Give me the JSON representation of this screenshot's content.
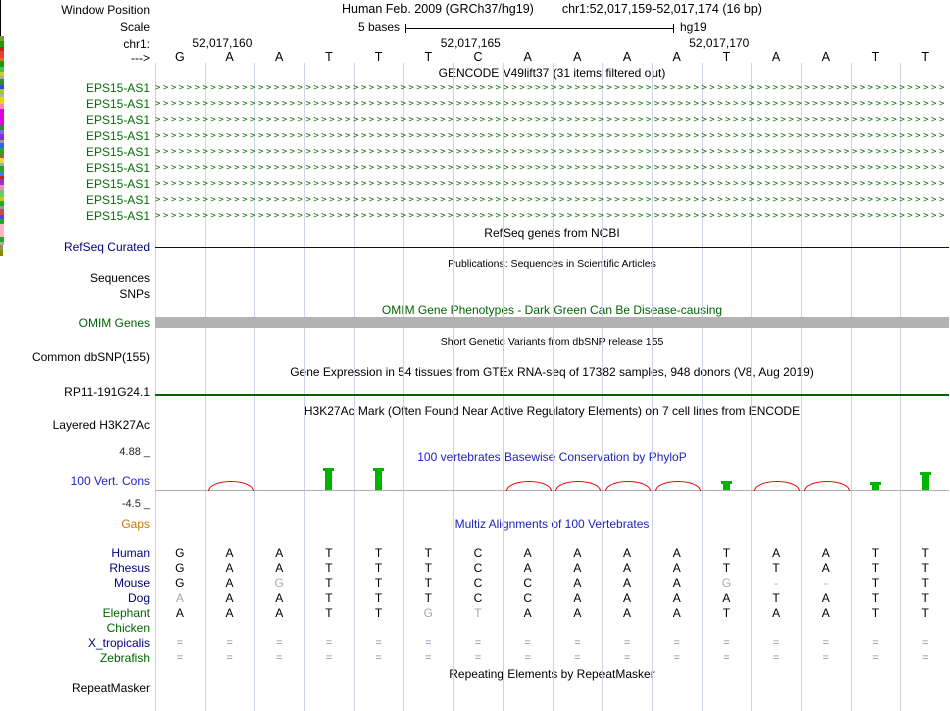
{
  "colors": {
    "green": "#007200",
    "dark-green": "#006400",
    "navy": "#000080",
    "title-blue": "#2222bb",
    "orange": "#c87800",
    "grid": "#ccd2e8",
    "gray-bar": "#b3b3b3",
    "red": "#e10000",
    "cons-green": "#00b400",
    "eq": "#8a8aa8",
    "dim": "#a8a8a8"
  },
  "window": {
    "assembly_title": "Human Feb. 2009 (GRCh37/hg19)",
    "position_title": "chr1:52,017,159-52,017,174 (16 bp)"
  },
  "ruler": {
    "window_position_label": "Window Position",
    "scale_label": "Scale",
    "scale_text": "5 bases",
    "assembly_short": "hg19",
    "chrom_label": "chr1:",
    "strand_arrow": "--->",
    "ticks": [
      {
        "label": "52,017,160",
        "col": 2
      },
      {
        "label": "52,017,165",
        "col": 7
      },
      {
        "label": "52,017,170",
        "col": 12
      }
    ]
  },
  "sequence": [
    "G",
    "A",
    "A",
    "T",
    "T",
    "T",
    "C",
    "A",
    "A",
    "A",
    "A",
    "T",
    "A",
    "A",
    "T",
    "T"
  ],
  "gencode": {
    "title": "GENCODE V49lift37 (31 items filtered out)",
    "gene_label": "EPS15-AS1",
    "rows": 9
  },
  "refseq": {
    "title": "RefSeq genes from NCBI",
    "label": "RefSeq Curated"
  },
  "publications": {
    "title": "Publications: Sequences in Scientific Articles",
    "label_sequences": "Sequences",
    "label_snps": "SNPs"
  },
  "omim": {
    "title": "OMIM Gene Phenotypes - Dark Green Can Be Disease-causing",
    "label": "OMIM Genes"
  },
  "dbsnp": {
    "title": "Short Genetic Variants from dbSNP release 155",
    "label": "Common dbSNP(155)"
  },
  "gtex": {
    "title": "Gene Expression in 54 tissues from GTEx RNA-seq of 17382 samples, 948 donors (V8, Aug 2019)",
    "label": "RP11-191G24.1",
    "bars": [
      {
        "h": 5,
        "c": "#7a9a3a"
      },
      {
        "h": 6,
        "c": "#0f9e0f"
      },
      {
        "h": 4,
        "c": "#cc2200"
      },
      {
        "h": 7,
        "c": "#e04040"
      },
      {
        "h": 3,
        "c": "#ef7000"
      },
      {
        "h": 6,
        "c": "#0f9e0f"
      },
      {
        "h": 5,
        "c": "#55bb55"
      },
      {
        "h": 4,
        "c": "#cfcf20"
      },
      {
        "h": 3,
        "c": "#aaaaaa"
      },
      {
        "h": 6,
        "c": "#2e8b2e"
      },
      {
        "h": 4,
        "c": "#4040e0"
      },
      {
        "h": 5,
        "c": "#9acd32"
      },
      {
        "h": 3,
        "c": "#b0b0b0"
      },
      {
        "h": 7,
        "c": "#e8d800"
      },
      {
        "h": 5,
        "c": "#ff85b0"
      },
      {
        "h": 16,
        "c": "#e000e0"
      },
      {
        "h": 5,
        "c": "#2e8b2e"
      },
      {
        "h": 4,
        "c": "#7070ff"
      },
      {
        "h": 6,
        "c": "#8a2be2"
      },
      {
        "h": 3,
        "c": "#999999"
      },
      {
        "h": 5,
        "c": "#3060ff"
      },
      {
        "h": 6,
        "c": "#22aa22"
      },
      {
        "h": 4,
        "c": "#996633"
      },
      {
        "h": 5,
        "c": "#dddd44"
      },
      {
        "h": 3,
        "c": "#aaaaaa"
      },
      {
        "h": 6,
        "c": "#22aa22"
      },
      {
        "h": 4,
        "c": "#4477ff"
      },
      {
        "h": 3,
        "c": "#cc2200"
      },
      {
        "h": 6,
        "c": "#9933cc"
      },
      {
        "h": 5,
        "c": "#ff88bb"
      },
      {
        "h": 7,
        "c": "#66cc66"
      },
      {
        "h": 4,
        "c": "#cccc00"
      },
      {
        "h": 5,
        "c": "#22aa22"
      },
      {
        "h": 3,
        "c": "#999999"
      },
      {
        "h": 6,
        "c": "#dd4444"
      },
      {
        "h": 4,
        "c": "#4444ff"
      },
      {
        "h": 5,
        "c": "#22aa22"
      },
      {
        "h": 13,
        "c": "#ffb6c1"
      },
      {
        "h": 5,
        "c": "#22aa22"
      },
      {
        "h": 3,
        "c": "#aaaaaa"
      }
    ]
  },
  "h3k27ac": {
    "title": "H3K27Ac Mark (Often Found Near Active Regulatory Elements) on 7 cell lines from ENCODE",
    "label": "Layered H3K27Ac"
  },
  "phylop": {
    "title": "100 vertebrates Basewise Conservation by PhyloP",
    "label": "100 Vert. Cons",
    "max_label": "4.88 _",
    "min_label": "-4.5 _",
    "marks": [
      {
        "col": 2,
        "type": "arc"
      },
      {
        "col": 4,
        "type": "bar",
        "h": 22
      },
      {
        "col": 5,
        "type": "bar",
        "h": 22
      },
      {
        "col": 6,
        "type": "tick",
        "h": 5,
        "c": "#8a9a4a"
      },
      {
        "col": 7,
        "type": "tick",
        "h": 6,
        "c": "#8b8b00"
      },
      {
        "col": 8,
        "type": "arc"
      },
      {
        "col": 9,
        "type": "arc"
      },
      {
        "col": 10,
        "type": "arc"
      },
      {
        "col": 11,
        "type": "arc"
      },
      {
        "col": 12,
        "type": "bar",
        "h": 9
      },
      {
        "col": 13,
        "type": "arc"
      },
      {
        "col": 14,
        "type": "arc"
      },
      {
        "col": 15,
        "type": "bar",
        "h": 8
      },
      {
        "col": 16,
        "type": "bar",
        "h": 18
      }
    ]
  },
  "multiz": {
    "title": "Multiz Alignments of 100 Vertebrates",
    "gaps_label": "Gaps",
    "species": [
      {
        "name": "Human",
        "color": "#000080",
        "bases": [
          "G",
          "A",
          "A",
          "T",
          "T",
          "T",
          "C",
          "A",
          "A",
          "A",
          "A",
          "T",
          "A",
          "A",
          "T",
          "T"
        ],
        "dim": []
      },
      {
        "name": "Rhesus",
        "color": "#000080",
        "bases": [
          "G",
          "A",
          "A",
          "T",
          "T",
          "T",
          "C",
          "A",
          "A",
          "A",
          "A",
          "T",
          "T",
          "A",
          "T",
          "T"
        ],
        "dim": []
      },
      {
        "name": "Mouse",
        "color": "#000080",
        "bases": [
          "G",
          "A",
          "G",
          "T",
          "T",
          "T",
          "C",
          "C",
          "A",
          "A",
          "A",
          "G",
          "-",
          "-",
          "T",
          "T"
        ],
        "dim": [
          2,
          11,
          12,
          13
        ]
      },
      {
        "name": "Dog",
        "color": "#000080",
        "bases": [
          "A",
          "A",
          "A",
          "T",
          "T",
          "T",
          "C",
          "C",
          "A",
          "A",
          "A",
          "A",
          "T",
          "A",
          "T",
          "T"
        ],
        "dim": [
          0
        ]
      },
      {
        "name": "Elephant",
        "color": "#006400",
        "bases": [
          "A",
          "A",
          "A",
          "T",
          "T",
          "G",
          "T",
          "A",
          "A",
          "A",
          "A",
          "T",
          "A",
          "A",
          "T",
          "T"
        ],
        "dim": [
          5,
          6
        ]
      },
      {
        "name": "Chicken",
        "color": "#006400",
        "bases": [],
        "dim": []
      },
      {
        "name": "X_tropicalis",
        "color": "#000080",
        "bases": [
          "=",
          "=",
          "=",
          "=",
          "=",
          "=",
          "=",
          "=",
          "=",
          "=",
          "=",
          "=",
          "=",
          "=",
          "=",
          "="
        ],
        "dim": []
      },
      {
        "name": "Zebrafish",
        "color": "#006400",
        "bases": [
          "=",
          "=",
          "=",
          "=",
          "=",
          "=",
          "=",
          "=",
          "=",
          "=",
          "=",
          "=",
          "=",
          "=",
          "=",
          "="
        ],
        "dim": []
      }
    ]
  },
  "repeatmasker": {
    "title": "Repeating Elements by RepeatMasker",
    "label": "RepeatMasker"
  }
}
